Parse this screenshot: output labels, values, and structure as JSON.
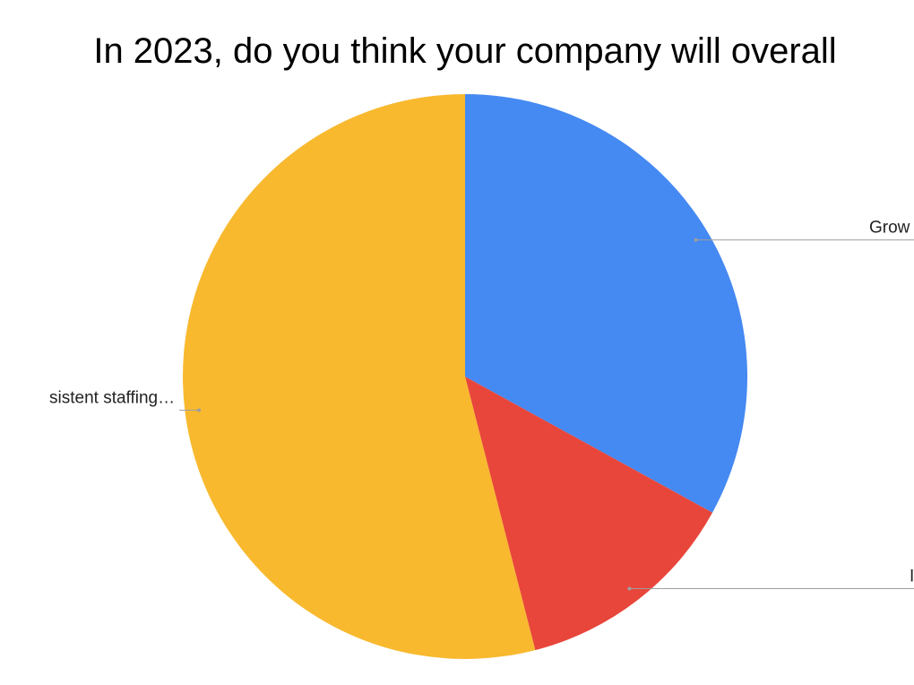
{
  "chart_data": {
    "type": "pie",
    "title": "In 2023, do you think your company will overall",
    "categories": [
      "Grow",
      "I",
      "sistent staffing…"
    ],
    "values": [
      33,
      13,
      54
    ],
    "colors": [
      "#4589f2",
      "#e8463b",
      "#f8b92f"
    ]
  }
}
